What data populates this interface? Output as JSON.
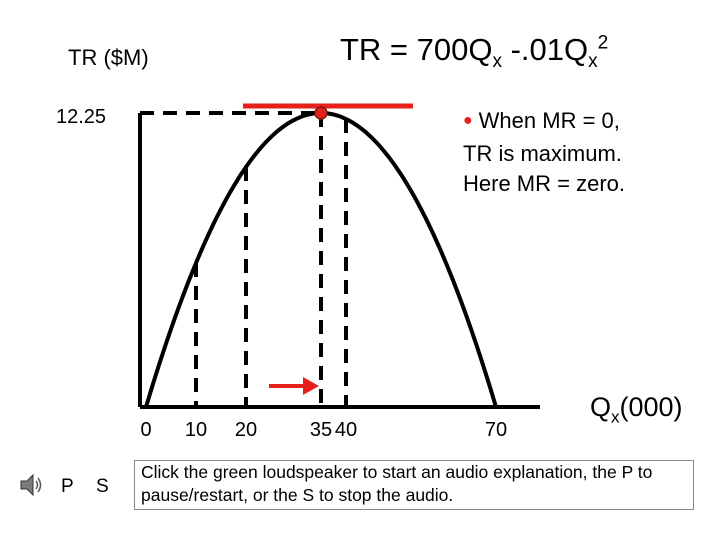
{
  "chart_data": {
    "type": "line",
    "equation": {
      "lead": "TR = 700Q",
      "sub1": "x",
      "mid": " -.01Q",
      "sub2": "x",
      "sup": "2"
    },
    "ylabel": "TR ($M)",
    "xlabel": {
      "main": "Q",
      "sub": "x",
      "rest": "(000)"
    },
    "y_tick": "12.25",
    "x_ticks": [
      "0",
      "10",
      "20",
      "35",
      "40",
      "70"
    ],
    "x_tick_values": [
      0,
      10,
      20,
      35,
      40,
      70
    ],
    "curve": {
      "roots": [
        0,
        70
      ],
      "peak_x": 35,
      "peak_y": 12.25
    },
    "vertical_dashed_at": [
      10,
      20,
      35,
      40
    ],
    "max_point": {
      "x": 35,
      "y": 12.25
    },
    "arrow_toward_x": 35,
    "note": [
      "When MR = 0,",
      "TR is maximum.",
      "Here MR = zero."
    ],
    "colors": {
      "curve": "#000000",
      "tangent": "#e6211c",
      "arrow": "#e6211c",
      "bullet": "#e6211c"
    }
  },
  "audio": {
    "speaker_icon": "loudspeaker-icon",
    "pause_label": "P",
    "stop_label": "S",
    "instructions": "Click the green loudspeaker to start an audio explanation, the P to pause/restart, or the S to stop the audio."
  }
}
